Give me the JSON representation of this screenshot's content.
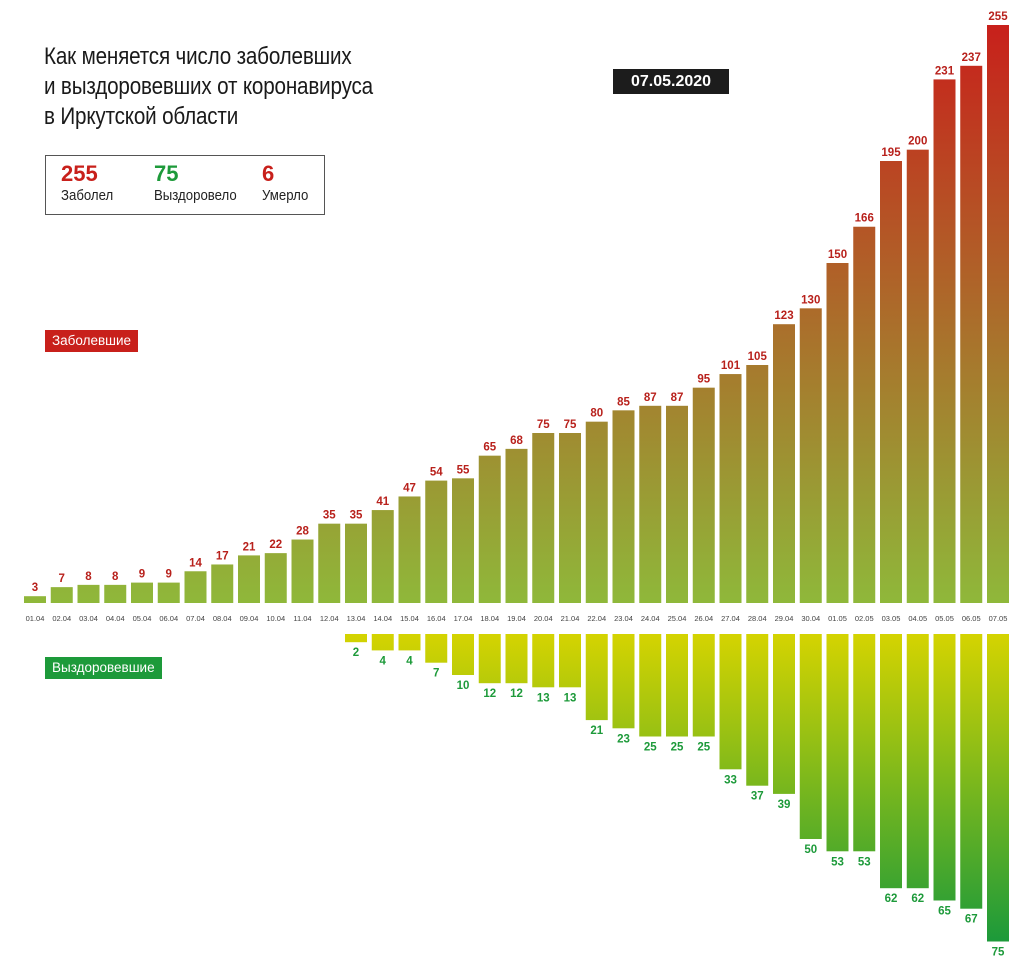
{
  "title_lines": [
    "Как меняется число заболевших",
    "и выздоровевших от коронавируса",
    "в Иркутской области"
  ],
  "date": "07.05.2020",
  "summary": {
    "cases": {
      "value": "255",
      "label": "Заболел"
    },
    "recovered": {
      "value": "75",
      "label": "Выздоровело"
    },
    "deaths": {
      "value": "6",
      "label": "Умерло"
    }
  },
  "legend": {
    "cases_label": "Заболевшие",
    "recovered_label": "Выздоровевшие"
  },
  "colors": {
    "cases_top": "#c8201b",
    "cases_bottom": "#8fb83a",
    "recovered_top": "#d6d400",
    "recovered_bottom": "#1d9a3a",
    "cases_text": "#b8211c",
    "recovered_text": "#1d9a3a"
  },
  "chart_data": {
    "type": "bar",
    "title": "Как меняется число заболевших и выздоровевших от коронавируса в Иркутской области",
    "categories": [
      "01.04",
      "02.04",
      "03.04",
      "04.04",
      "05.04",
      "06.04",
      "07.04",
      "08.04",
      "09.04",
      "10.04",
      "11.04",
      "12.04",
      "13.04",
      "14.04",
      "15.04",
      "16.04",
      "17.04",
      "18.04",
      "19.04",
      "20.04",
      "21.04",
      "22.04",
      "23.04",
      "24.04",
      "25.04",
      "26.04",
      "27.04",
      "28.04",
      "29.04",
      "30.04",
      "01.05",
      "02.05",
      "03.05",
      "04.05",
      "05.05",
      "06.05",
      "07.05"
    ],
    "series": [
      {
        "name": "Заболевшие",
        "direction": "up",
        "values": [
          3,
          7,
          8,
          8,
          9,
          9,
          14,
          17,
          21,
          22,
          28,
          35,
          35,
          41,
          47,
          54,
          55,
          65,
          68,
          75,
          75,
          80,
          85,
          87,
          87,
          95,
          101,
          105,
          123,
          130,
          150,
          166,
          195,
          200,
          231,
          237,
          255
        ]
      },
      {
        "name": "Выздоровевшие",
        "direction": "down",
        "values": [
          0,
          0,
          0,
          0,
          0,
          0,
          0,
          0,
          0,
          0,
          0,
          0,
          2,
          4,
          4,
          7,
          10,
          12,
          12,
          13,
          13,
          21,
          23,
          25,
          25,
          25,
          33,
          37,
          39,
          50,
          53,
          53,
          62,
          62,
          65,
          67,
          75
        ]
      }
    ],
    "xlabel": "",
    "ylabel": "",
    "ylim": [
      0,
      255
    ]
  }
}
